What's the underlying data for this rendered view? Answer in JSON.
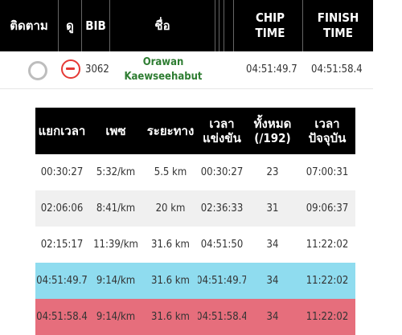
{
  "header": {
    "follow": "ติดตาม",
    "view": "ดู",
    "bib": "BIB",
    "name": "ชื่อ",
    "chip_time": [
      "CHIP",
      "TIME"
    ],
    "finish_time": [
      "FINISH",
      "TIME"
    ]
  },
  "runner": {
    "bib": "3062",
    "first_name": "Orawan",
    "last_name": "Kaewseehabut",
    "chip_time": "04:51:49.7",
    "finish_time": "04:51:58.4"
  },
  "splits": {
    "headers": {
      "split_time": "แยกเวลา",
      "pace": "เพซ",
      "distance": "ระยะทาง",
      "race_time": [
        "เวลา",
        "แข่งขัน"
      ],
      "overall": [
        "ทั้งหมด",
        "(/192)"
      ],
      "current_time": [
        "เวลา",
        "ปัจจุบัน"
      ]
    },
    "rows": [
      {
        "split": "00:30:27",
        "pace": "5:32/km",
        "distance": "5.5 km",
        "race": "00:30:27",
        "rank": "23",
        "clock": "07:00:31",
        "style": "white"
      },
      {
        "split": "02:06:06",
        "pace": "8:41/km",
        "distance": "20 km",
        "race": "02:36:33",
        "rank": "31",
        "clock": "09:06:37",
        "style": "gray"
      },
      {
        "split": "02:15:17",
        "pace": "11:39/km",
        "distance": "31.6 km",
        "race": "04:51:50",
        "rank": "34",
        "clock": "11:22:02",
        "style": "white"
      },
      {
        "split": "04:51:49.7",
        "pace": "9:14/km",
        "distance": "31.6 km",
        "race": "04:51:49.7",
        "rank": "34",
        "clock": "11:22:02",
        "style": "blue"
      },
      {
        "split": "04:51:58.4",
        "pace": "9:14/km",
        "distance": "31.6 km",
        "race": "04:51:58.4",
        "rank": "34",
        "clock": "11:22:02",
        "style": "red"
      }
    ]
  }
}
